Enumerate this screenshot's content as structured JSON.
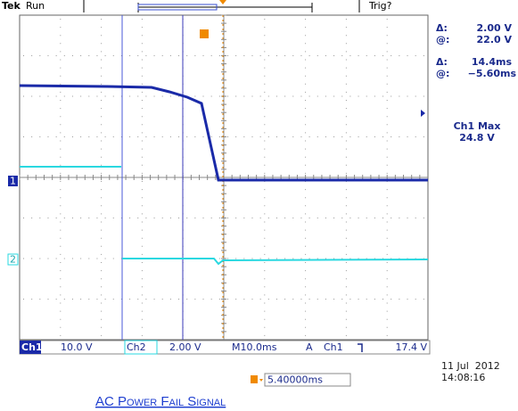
{
  "header": {
    "brand": "Tek",
    "status": "Run",
    "trigger_status": "Trig?"
  },
  "readouts": {
    "delta_v_label": "Δ:",
    "delta_v": "2.00 V",
    "at_v_label": "@:",
    "at_v": "22.0 V",
    "delta_t_label": "Δ:",
    "delta_t": "14.4ms",
    "at_t_label": "@:",
    "at_t": "−5.60ms",
    "measure_name": "Ch1 Max",
    "measure_value": "24.8 V"
  },
  "channel_markers": [
    "1",
    "2"
  ],
  "status_bar": {
    "ch1": "Ch1",
    "ch1_scale": "10.0 V",
    "ch2": "Ch2",
    "ch2_scale": "2.00 V",
    "timebase": "M10.0ms",
    "trigger_mode": "A",
    "trigger_source": "Ch1",
    "trigger_level": "17.4 V"
  },
  "trigger_offset": "5.40000ms",
  "date": "11 Jul  2012",
  "time": "14:08:16",
  "caption": "AC Power Fail Signal"
}
